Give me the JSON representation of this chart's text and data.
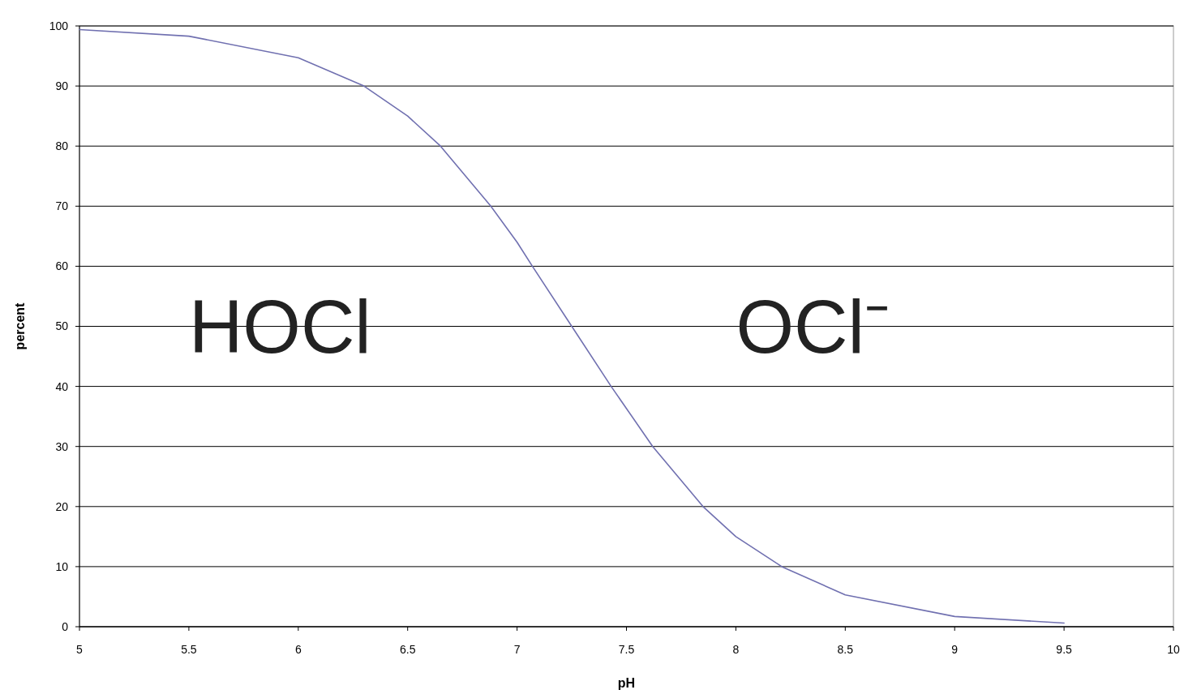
{
  "chart_data": {
    "type": "line",
    "xlabel": "pH",
    "ylabel": "percent",
    "x": [
      5,
      5.5,
      6,
      6.3,
      6.5,
      6.65,
      6.88,
      7,
      7.07,
      7.25,
      7.43,
      7.62,
      7.85,
      8,
      8.21,
      8.5,
      9,
      9.5
    ],
    "series": [
      {
        "color": "#7070b0",
        "values": [
          99.4,
          98.3,
          94.7,
          90,
          85,
          80,
          70,
          64,
          60,
          50,
          40,
          30,
          20,
          15,
          10,
          5.3,
          1.7,
          0.6
        ]
      }
    ],
    "xlim": [
      5,
      10
    ],
    "xticks": [
      5,
      5.5,
      6,
      6.5,
      7,
      7.5,
      8,
      8.5,
      9,
      9.5,
      10
    ],
    "ylim": [
      0,
      100
    ],
    "yticks": [
      0,
      10,
      20,
      30,
      40,
      50,
      60,
      70,
      80,
      90,
      100
    ],
    "grid": "y",
    "marker": "none",
    "line_style": "solid",
    "annotations": [
      "HOCl",
      "OCl⁻"
    ]
  }
}
